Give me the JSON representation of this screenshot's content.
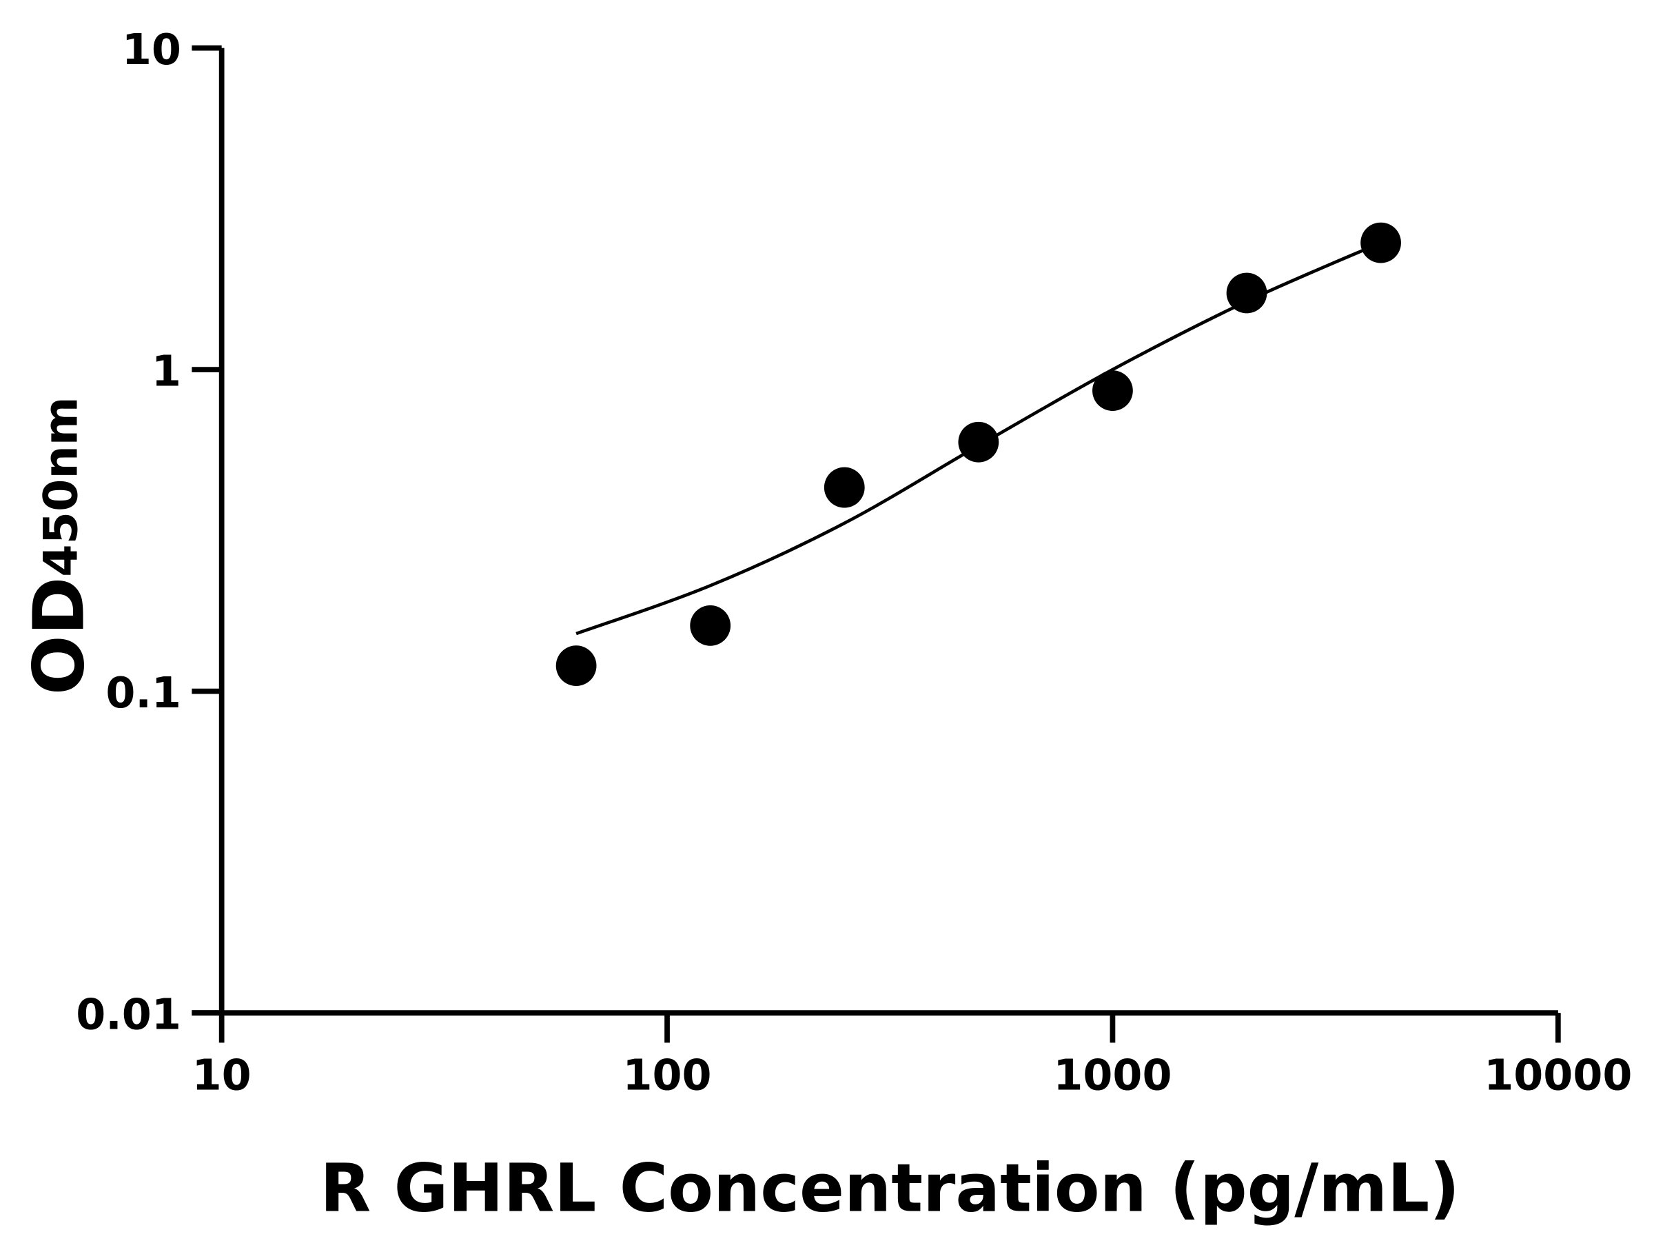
{
  "chart_data": {
    "type": "scatter",
    "title": "",
    "xlabel": "R GHRL Concentration (pg/mL)",
    "ylabel": "OD",
    "ylabel_subscript": "450nm",
    "x_scale": "log",
    "y_scale": "log",
    "xlim": [
      10,
      10000
    ],
    "ylim": [
      0.01,
      10
    ],
    "x_ticks": [
      "10",
      "100",
      "1000",
      "10000"
    ],
    "y_ticks": [
      "0.01",
      "0.1",
      "1",
      "10"
    ],
    "grid": false,
    "points": {
      "x": [
        62.5,
        125,
        250,
        500,
        1000,
        2000,
        4000
      ],
      "y": [
        0.12,
        0.16,
        0.43,
        0.595,
        0.86,
        1.73,
        2.48
      ]
    },
    "fit_curve": {
      "x": [
        62.5,
        125,
        250,
        500,
        1000,
        2000,
        4000
      ],
      "y": [
        0.151,
        0.213,
        0.333,
        0.58,
        1.0,
        1.63,
        2.48
      ]
    },
    "colors": {
      "points": "#000000",
      "curve": "#000000",
      "axes": "#000000"
    }
  }
}
